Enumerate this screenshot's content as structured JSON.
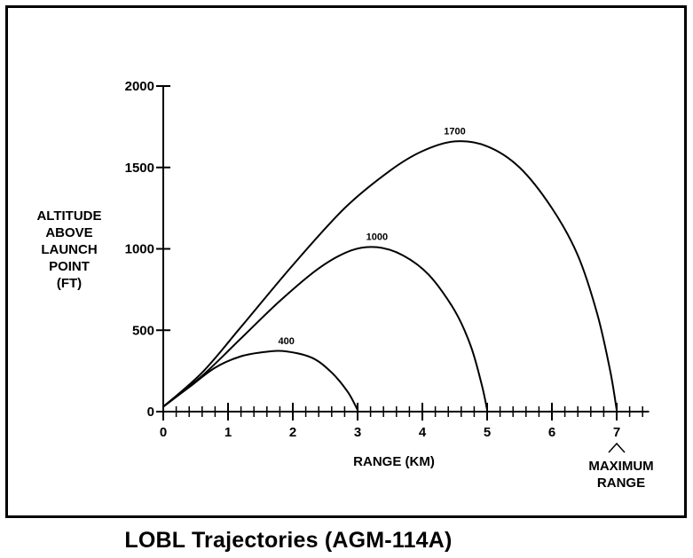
{
  "caption": "LOBL Trajectories (AGM-114A)",
  "chart_data": {
    "type": "line",
    "title": "",
    "xlabel": "RANGE (KM)",
    "ylabel_lines": [
      "ALTITUDE",
      "ABOVE",
      "LAUNCH",
      "POINT",
      "(FT)"
    ],
    "xlim": [
      0,
      7.5
    ],
    "ylim": [
      0,
      2000
    ],
    "x_major_ticks": [
      0,
      1,
      2,
      3,
      4,
      5,
      6,
      7
    ],
    "x_minor_step": 0.2,
    "y_ticks": [
      0,
      500,
      1000,
      1500,
      2000
    ],
    "grid": false,
    "annotation_lines": [
      "MAXIMUM",
      "RANGE"
    ],
    "annotation_x": 7,
    "series": [
      {
        "name": "400",
        "points": [
          [
            0,
            30
          ],
          [
            0.4,
            150
          ],
          [
            0.8,
            270
          ],
          [
            1.2,
            340
          ],
          [
            1.6,
            368
          ],
          [
            1.9,
            370
          ],
          [
            2.3,
            330
          ],
          [
            2.6,
            240
          ],
          [
            2.85,
            120
          ],
          [
            3.0,
            10
          ]
        ]
      },
      {
        "name": "1000",
        "points": [
          [
            0,
            30
          ],
          [
            0.6,
            220
          ],
          [
            1.2,
            450
          ],
          [
            1.8,
            680
          ],
          [
            2.4,
            880
          ],
          [
            2.9,
            990
          ],
          [
            3.3,
            1010
          ],
          [
            3.7,
            960
          ],
          [
            4.1,
            840
          ],
          [
            4.5,
            620
          ],
          [
            4.75,
            400
          ],
          [
            4.92,
            160
          ],
          [
            5.0,
            10
          ]
        ]
      },
      {
        "name": "1700",
        "points": [
          [
            0,
            30
          ],
          [
            0.6,
            240
          ],
          [
            1.2,
            520
          ],
          [
            2.0,
            900
          ],
          [
            2.8,
            1250
          ],
          [
            3.5,
            1480
          ],
          [
            4.0,
            1600
          ],
          [
            4.5,
            1660
          ],
          [
            5.0,
            1630
          ],
          [
            5.5,
            1500
          ],
          [
            6.0,
            1250
          ],
          [
            6.4,
            960
          ],
          [
            6.7,
            600
          ],
          [
            6.9,
            250
          ],
          [
            7.0,
            10
          ]
        ]
      }
    ]
  }
}
